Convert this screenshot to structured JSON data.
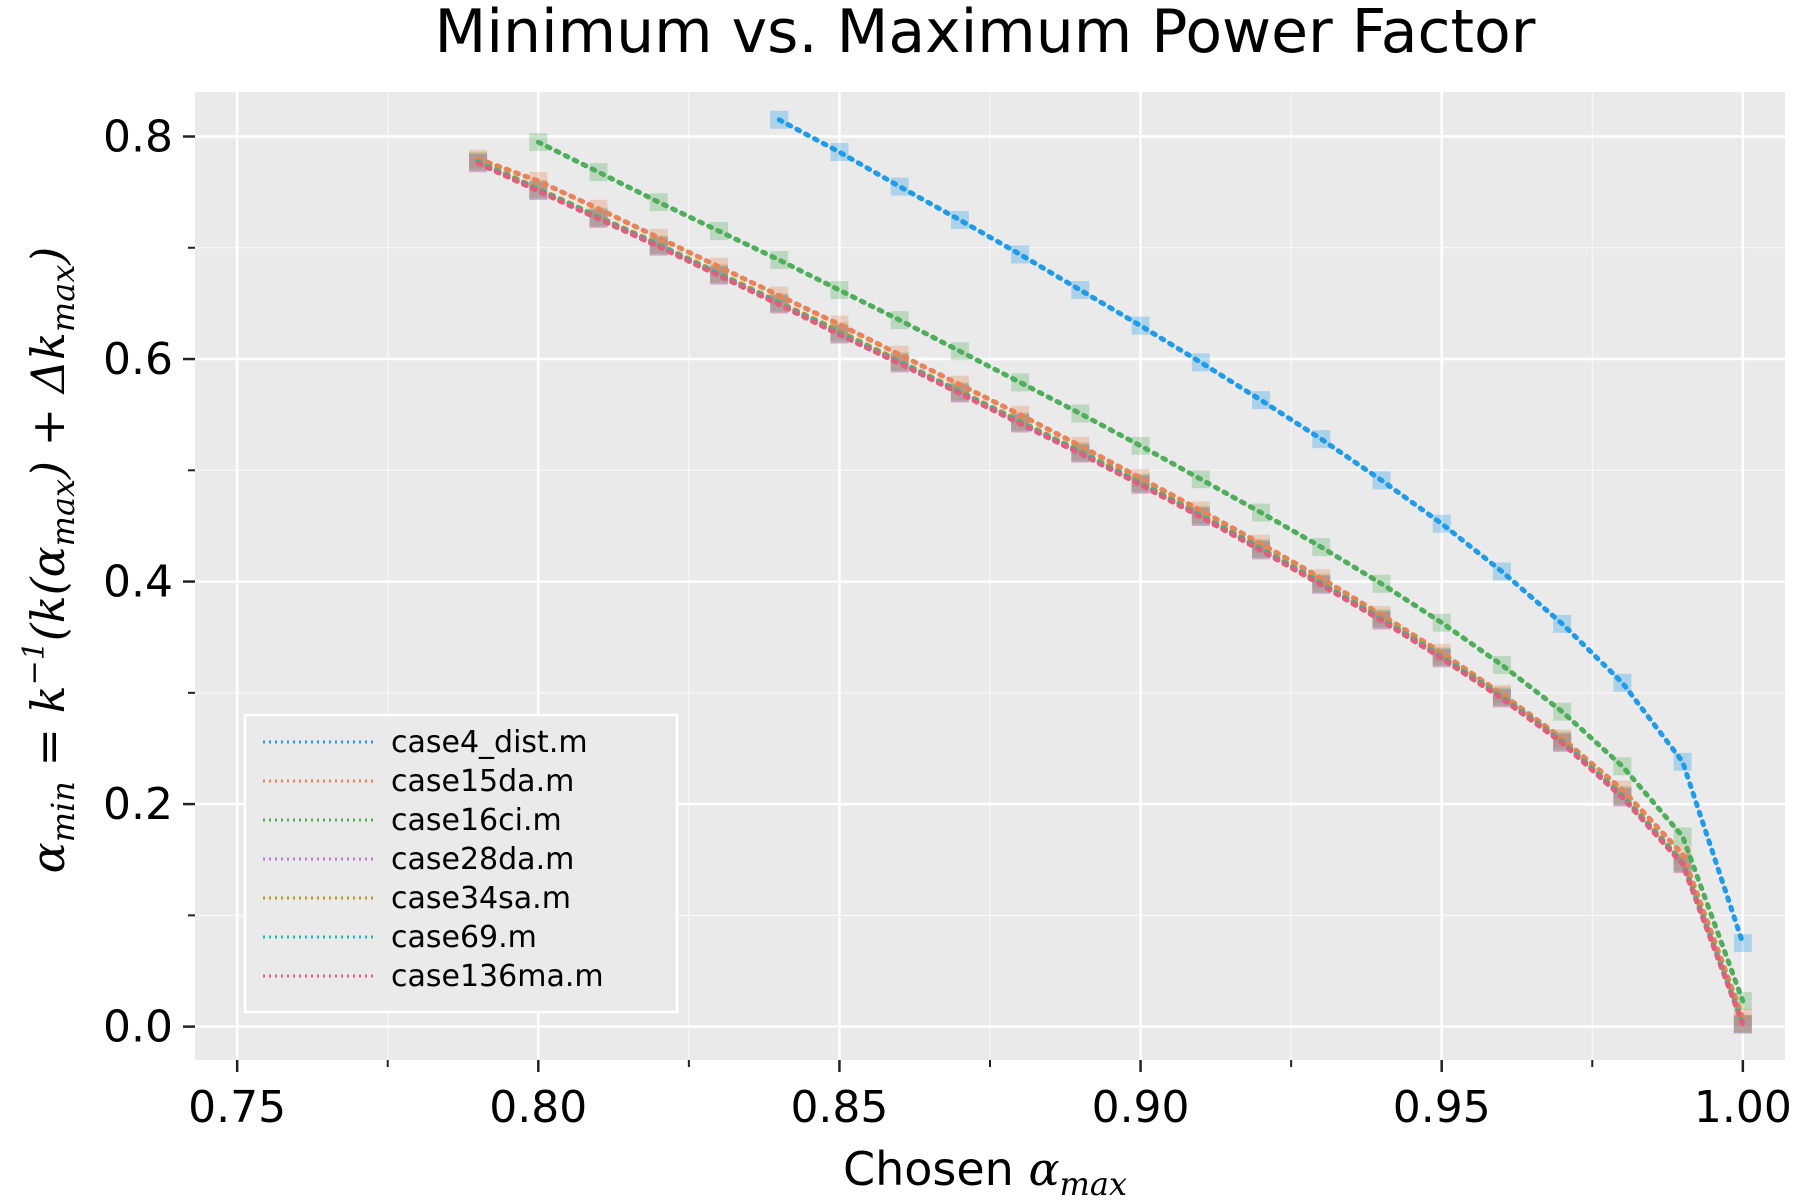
{
  "chart_data": {
    "type": "line",
    "title": "Minimum vs. Maximum Power Factor",
    "xlabel_prefix": "Chosen ",
    "xlabel_symbol": "α",
    "xlabel_subscript": "max",
    "ylabel_parts": {
      "lhs": "α",
      "lhs_sub": "min",
      "eq": " = k",
      "inv": "−1",
      "mid1": "(k(α",
      "mid1_sub": "max",
      "mid2": ") + Δk",
      "mid2_sub": "max",
      "end": ")"
    },
    "xlim": [
      0.743,
      1.007
    ],
    "ylim": [
      -0.03,
      0.84
    ],
    "xticks": [
      0.75,
      0.8,
      0.85,
      0.9,
      0.95,
      1.0
    ],
    "xtick_labels": [
      "0.75",
      "0.80",
      "0.85",
      "0.90",
      "0.95",
      "1.00"
    ],
    "yticks": [
      0.0,
      0.2,
      0.4,
      0.6,
      0.8
    ],
    "ytick_labels": [
      "0.0",
      "0.2",
      "0.4",
      "0.6",
      "0.8"
    ],
    "grid": true,
    "background": "#eaeaea",
    "legend_placement": "lower-left",
    "series": [
      {
        "name": "case4_dist.m",
        "color": "#1f9be8",
        "x": [
          0.84,
          0.85,
          0.86,
          0.87,
          0.88,
          0.89,
          0.9,
          0.91,
          0.92,
          0.93,
          0.94,
          0.95,
          0.96,
          0.97,
          0.98,
          0.99,
          1.0
        ],
        "y": [
          0.815,
          0.786,
          0.755,
          0.725,
          0.694,
          0.662,
          0.63,
          0.597,
          0.563,
          0.528,
          0.491,
          0.452,
          0.409,
          0.362,
          0.309,
          0.238,
          0.075
        ]
      },
      {
        "name": "case15da.m",
        "color": "#e8845a",
        "x": [
          0.79,
          0.8,
          0.81,
          0.82,
          0.83,
          0.84,
          0.85,
          0.86,
          0.87,
          0.88,
          0.89,
          0.9,
          0.91,
          0.92,
          0.93,
          0.94,
          0.95,
          0.96,
          0.97,
          0.98,
          0.99,
          1.0
        ],
        "y": [
          0.78,
          0.76,
          0.735,
          0.709,
          0.683,
          0.657,
          0.631,
          0.604,
          0.577,
          0.55,
          0.522,
          0.493,
          0.464,
          0.434,
          0.403,
          0.37,
          0.336,
          0.299,
          0.259,
          0.213,
          0.155,
          0.008
        ]
      },
      {
        "name": "case16ci.m",
        "color": "#4fae5b",
        "x": [
          0.8,
          0.81,
          0.82,
          0.83,
          0.84,
          0.85,
          0.86,
          0.87,
          0.88,
          0.89,
          0.9,
          0.91,
          0.92,
          0.93,
          0.94,
          0.95,
          0.96,
          0.97,
          0.98,
          0.99,
          1.0
        ],
        "y": [
          0.795,
          0.768,
          0.741,
          0.715,
          0.689,
          0.662,
          0.635,
          0.607,
          0.579,
          0.551,
          0.522,
          0.492,
          0.462,
          0.431,
          0.398,
          0.363,
          0.325,
          0.283,
          0.234,
          0.171,
          0.023
        ]
      },
      {
        "name": "case28da.m",
        "color": "#c07ad8",
        "x": [
          0.79,
          0.8,
          0.81,
          0.82,
          0.83,
          0.84,
          0.85,
          0.86,
          0.87,
          0.88,
          0.89,
          0.9,
          0.91,
          0.92,
          0.93,
          0.94,
          0.95,
          0.96,
          0.97,
          0.98,
          0.99,
          1.0
        ],
        "y": [
          0.776,
          0.751,
          0.726,
          0.701,
          0.675,
          0.649,
          0.622,
          0.596,
          0.569,
          0.542,
          0.515,
          0.487,
          0.458,
          0.428,
          0.397,
          0.365,
          0.331,
          0.295,
          0.255,
          0.206,
          0.146,
          0.002
        ]
      },
      {
        "name": "case34sa.m",
        "color": "#b89a2a",
        "x": [
          0.79,
          0.8,
          0.81,
          0.82,
          0.83,
          0.84,
          0.85,
          0.86,
          0.87,
          0.88,
          0.89,
          0.9,
          0.91,
          0.92,
          0.93,
          0.94,
          0.95,
          0.96,
          0.97,
          0.98,
          0.99,
          1.0
        ],
        "y": [
          0.778,
          0.753,
          0.728,
          0.703,
          0.677,
          0.651,
          0.625,
          0.598,
          0.571,
          0.544,
          0.517,
          0.489,
          0.46,
          0.43,
          0.399,
          0.367,
          0.333,
          0.297,
          0.257,
          0.208,
          0.148,
          0.003
        ]
      },
      {
        "name": "case69.m",
        "color": "#22b8b8",
        "x": [
          0.79,
          0.8,
          0.81,
          0.82,
          0.83,
          0.84,
          0.85,
          0.86,
          0.87,
          0.88,
          0.89,
          0.9,
          0.91,
          0.92,
          0.93,
          0.94,
          0.95,
          0.96,
          0.97,
          0.98,
          0.99,
          1.0
        ],
        "y": [
          0.777,
          0.752,
          0.727,
          0.702,
          0.676,
          0.65,
          0.623,
          0.597,
          0.57,
          0.543,
          0.516,
          0.488,
          0.459,
          0.429,
          0.398,
          0.366,
          0.332,
          0.296,
          0.256,
          0.207,
          0.147,
          0.002
        ]
      },
      {
        "name": "case136ma.m",
        "color": "#e0607a",
        "x": [
          0.79,
          0.8,
          0.81,
          0.82,
          0.83,
          0.84,
          0.85,
          0.86,
          0.87,
          0.88,
          0.89,
          0.9,
          0.91,
          0.92,
          0.93,
          0.94,
          0.95,
          0.96,
          0.97,
          0.98,
          0.99,
          1.0
        ],
        "y": [
          0.776,
          0.751,
          0.726,
          0.701,
          0.675,
          0.649,
          0.622,
          0.596,
          0.569,
          0.542,
          0.515,
          0.487,
          0.458,
          0.428,
          0.397,
          0.365,
          0.331,
          0.295,
          0.255,
          0.206,
          0.146,
          0.002
        ]
      }
    ]
  }
}
